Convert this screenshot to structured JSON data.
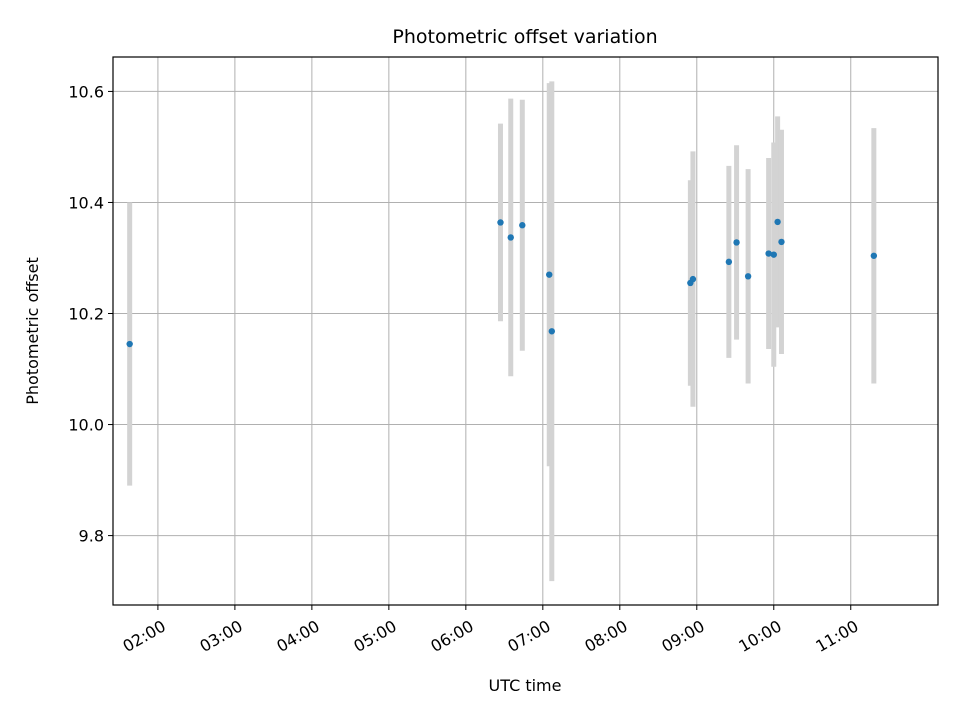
{
  "chart_data": {
    "type": "scatter",
    "title": "Photometric offset variation",
    "xlabel": "UTC time",
    "ylabel": "Photometric offset",
    "x_unit": "UTC time (HH:MM)",
    "xlim": [
      "01:25",
      "12:08"
    ],
    "ylim": [
      9.675,
      10.662
    ],
    "x_ticks": [
      "02:00",
      "03:00",
      "04:00",
      "05:00",
      "06:00",
      "07:00",
      "08:00",
      "09:00",
      "10:00",
      "11:00"
    ],
    "y_ticks": [
      "9.8",
      "10.0",
      "10.2",
      "10.4",
      "10.6"
    ],
    "y_tick_values": [
      9.8,
      10.0,
      10.2,
      10.4,
      10.6
    ],
    "grid": true,
    "legend": "none",
    "colors": {
      "point": "#1f77b4",
      "errorbar": "#d3d3d3",
      "grid": "#b0b0b0"
    },
    "points": [
      {
        "x": "01:38",
        "y": 10.145,
        "err": 0.255
      },
      {
        "x": "06:27",
        "y": 10.364,
        "err": 0.178
      },
      {
        "x": "06:35",
        "y": 10.337,
        "err": 0.25
      },
      {
        "x": "06:44",
        "y": 10.359,
        "err": 0.226
      },
      {
        "x": "07:05",
        "y": 10.27,
        "err": 0.345
      },
      {
        "x": "07:07",
        "y": 10.168,
        "err": 0.45
      },
      {
        "x": "08:55",
        "y": 10.255,
        "err": 0.185
      },
      {
        "x": "08:57",
        "y": 10.262,
        "err": 0.23
      },
      {
        "x": "09:25",
        "y": 10.293,
        "err": 0.173
      },
      {
        "x": "09:31",
        "y": 10.328,
        "err": 0.175
      },
      {
        "x": "09:40",
        "y": 10.267,
        "err": 0.193
      },
      {
        "x": "09:56",
        "y": 10.308,
        "err": 0.172
      },
      {
        "x": "10:00",
        "y": 10.306,
        "err": 0.202
      },
      {
        "x": "10:03",
        "y": 10.365,
        "err": 0.19
      },
      {
        "x": "10:06",
        "y": 10.329,
        "err": 0.202
      },
      {
        "x": "11:18",
        "y": 10.304,
        "err": 0.23
      }
    ]
  }
}
